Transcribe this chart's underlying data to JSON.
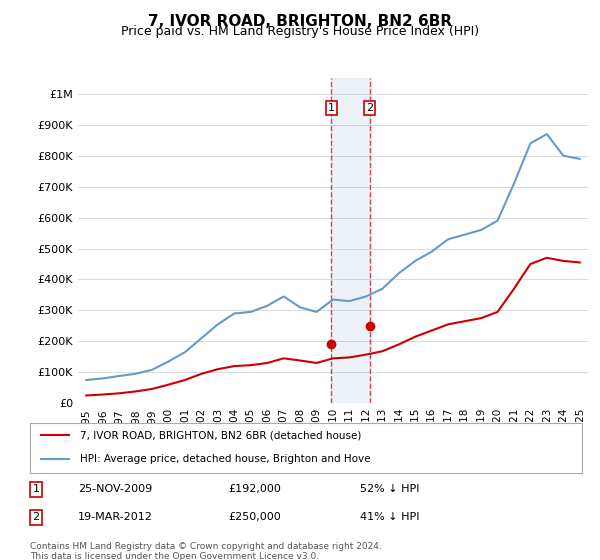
{
  "title": "7, IVOR ROAD, BRIGHTON, BN2 6BR",
  "subtitle": "Price paid vs. HM Land Registry's House Price Index (HPI)",
  "hpi_color": "#6699cc",
  "price_color": "#cc0000",
  "background_color": "#ffffff",
  "ylim": [
    0,
    1050000
  ],
  "yticks": [
    0,
    100000,
    200000,
    300000,
    400000,
    500000,
    600000,
    700000,
    800000,
    900000,
    1000000
  ],
  "ytick_labels": [
    "£0",
    "£100K",
    "£200K",
    "£300K",
    "£400K",
    "£500K",
    "£600K",
    "£700K",
    "£800K",
    "£900K",
    "£1M"
  ],
  "sale1_date_num": 2009.9,
  "sale1_price": 192000,
  "sale1_label": "1",
  "sale2_date_num": 2012.22,
  "sale2_price": 250000,
  "sale2_label": "2",
  "legend_price_label": "7, IVOR ROAD, BRIGHTON, BN2 6BR (detached house)",
  "legend_hpi_label": "HPI: Average price, detached house, Brighton and Hove",
  "table_row1": [
    "1",
    "25-NOV-2009",
    "£192,000",
    "52% ↓ HPI"
  ],
  "table_row2": [
    "2",
    "19-MAR-2012",
    "£250,000",
    "41% ↓ HPI"
  ],
  "footnote": "Contains HM Land Registry data © Crown copyright and database right 2024.\nThis data is licensed under the Open Government Licence v3.0.",
  "hpi_years": [
    1995,
    1996,
    1997,
    1998,
    1999,
    2000,
    2001,
    2002,
    2003,
    2004,
    2005,
    2006,
    2007,
    2008,
    2009,
    2010,
    2011,
    2012,
    2013,
    2014,
    2015,
    2016,
    2017,
    2018,
    2019,
    2020,
    2021,
    2022,
    2023,
    2024,
    2025
  ],
  "hpi_values": [
    75000,
    80000,
    88000,
    95000,
    108000,
    135000,
    165000,
    210000,
    255000,
    290000,
    295000,
    315000,
    345000,
    310000,
    295000,
    335000,
    330000,
    345000,
    370000,
    420000,
    460000,
    490000,
    530000,
    545000,
    560000,
    590000,
    710000,
    840000,
    870000,
    800000,
    790000
  ],
  "price_years": [
    1995,
    1996,
    1997,
    1998,
    1999,
    2000,
    2001,
    2002,
    2003,
    2004,
    2005,
    2006,
    2007,
    2008,
    2009,
    2010,
    2011,
    2012,
    2013,
    2014,
    2015,
    2016,
    2017,
    2018,
    2019,
    2020,
    2021,
    2022,
    2023,
    2024,
    2025
  ],
  "price_values": [
    25000,
    28000,
    32000,
    38000,
    46000,
    60000,
    75000,
    95000,
    110000,
    120000,
    123000,
    130000,
    145000,
    138000,
    130000,
    145000,
    148000,
    157000,
    168000,
    190000,
    215000,
    235000,
    255000,
    265000,
    275000,
    295000,
    370000,
    450000,
    470000,
    460000,
    455000
  ]
}
